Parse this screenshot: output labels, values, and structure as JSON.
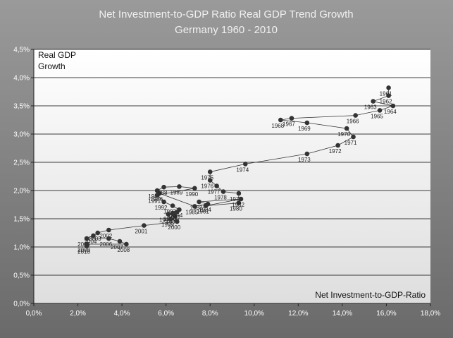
{
  "chart_data": {
    "type": "scatter",
    "title": "Net Investment-to-GDP Ratio Real GDP Trend Growth",
    "subtitle": "Germany 1960 - 2010",
    "xlabel": "Net Investment-to-GDP-Ratio",
    "ylabel": "Real GDP Growth",
    "xlim": [
      0,
      18
    ],
    "ylim": [
      0,
      4.5
    ],
    "x_ticks": [
      "0,0%",
      "2,0%",
      "4,0%",
      "6,0%",
      "8,0%",
      "10,0%",
      "12,0%",
      "14,0%",
      "16,0%",
      "18,0%"
    ],
    "y_ticks": [
      "0,0%",
      "0,5%",
      "1,0%",
      "1,5%",
      "2,0%",
      "2,5%",
      "3,0%",
      "3,5%",
      "4,0%",
      "4,5%"
    ],
    "grid": true,
    "connected": true,
    "series": [
      {
        "points": [
          {
            "label": "1961",
            "x": 16.1,
            "y": 3.82
          },
          {
            "label": "1962",
            "x": 16.1,
            "y": 3.68
          },
          {
            "label": "1963",
            "x": 15.4,
            "y": 3.58
          },
          {
            "label": "1964",
            "x": 16.3,
            "y": 3.5
          },
          {
            "label": "1965",
            "x": 15.7,
            "y": 3.42
          },
          {
            "label": "1966",
            "x": 14.6,
            "y": 3.33
          },
          {
            "label": "1967",
            "x": 11.7,
            "y": 3.28
          },
          {
            "label": "1968",
            "x": 11.2,
            "y": 3.25
          },
          {
            "label": "1969",
            "x": 12.4,
            "y": 3.2
          },
          {
            "label": "1970",
            "x": 14.2,
            "y": 3.1
          },
          {
            "label": "1971",
            "x": 14.5,
            "y": 2.95
          },
          {
            "label": "1972",
            "x": 13.8,
            "y": 2.8
          },
          {
            "label": "1973",
            "x": 12.4,
            "y": 2.65
          },
          {
            "label": "1974",
            "x": 9.6,
            "y": 2.47
          },
          {
            "label": "1975",
            "x": 8.0,
            "y": 2.33
          },
          {
            "label": "1976",
            "x": 8.0,
            "y": 2.18
          },
          {
            "label": "1977",
            "x": 8.3,
            "y": 2.08
          },
          {
            "label": "1978",
            "x": 8.6,
            "y": 1.98
          },
          {
            "label": "1979",
            "x": 9.3,
            "y": 1.95
          },
          {
            "label": "1980",
            "x": 9.3,
            "y": 1.78
          },
          {
            "label": "1981",
            "x": 7.8,
            "y": 1.73
          },
          {
            "label": "1982",
            "x": 9.4,
            "y": 1.85
          },
          {
            "label": "1983",
            "x": 7.5,
            "y": 1.8
          },
          {
            "label": "1984",
            "x": 7.9,
            "y": 1.76
          },
          {
            "label": "1985",
            "x": 7.3,
            "y": 1.72
          },
          {
            "label": "1986",
            "x": 5.7,
            "y": 1.95
          },
          {
            "label": "1987",
            "x": 5.6,
            "y": 2.0
          },
          {
            "label": "1988",
            "x": 5.9,
            "y": 2.06
          },
          {
            "label": "1989",
            "x": 6.6,
            "y": 2.07
          },
          {
            "label": "1990",
            "x": 7.3,
            "y": 2.04
          },
          {
            "label": "1991",
            "x": 5.6,
            "y": 1.92
          },
          {
            "label": "1992",
            "x": 5.9,
            "y": 1.8
          },
          {
            "label": "1993",
            "x": 6.3,
            "y": 1.73
          },
          {
            "label": "1994",
            "x": 6.6,
            "y": 1.66
          },
          {
            "label": "1995",
            "x": 6.1,
            "y": 1.58
          },
          {
            "label": "1996",
            "x": 6.4,
            "y": 1.55
          },
          {
            "label": "1997",
            "x": 6.5,
            "y": 1.62
          },
          {
            "label": "1998",
            "x": 6.3,
            "y": 1.6
          },
          {
            "label": "1999",
            "x": 6.2,
            "y": 1.5
          },
          {
            "label": "2000",
            "x": 6.5,
            "y": 1.45
          },
          {
            "label": "2001",
            "x": 5.0,
            "y": 1.38
          },
          {
            "label": "2002",
            "x": 3.4,
            "y": 1.3
          },
          {
            "label": "2003",
            "x": 2.9,
            "y": 1.25
          },
          {
            "label": "2004",
            "x": 2.7,
            "y": 1.2
          },
          {
            "label": "2005",
            "x": 2.4,
            "y": 1.15
          },
          {
            "label": "2006",
            "x": 3.4,
            "y": 1.15
          },
          {
            "label": "2007",
            "x": 3.9,
            "y": 1.1
          },
          {
            "label": "2008",
            "x": 4.2,
            "y": 1.05
          },
          {
            "label": "2009",
            "x": 2.4,
            "y": 1.05
          },
          {
            "label": "2010",
            "x": 2.4,
            "y": 1.02
          }
        ]
      }
    ]
  }
}
